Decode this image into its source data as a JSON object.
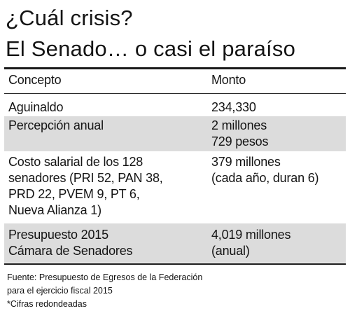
{
  "title": {
    "line1": "¿Cuál crisis?",
    "line2": "El Senado… o casi el paraíso"
  },
  "table": {
    "headers": [
      "Concepto",
      "Monto"
    ],
    "rows": [
      {
        "concept": [
          "Aguinaldo"
        ],
        "amount": [
          "234,330"
        ],
        "shaded": false
      },
      {
        "concept": [
          "Percepción anual"
        ],
        "amount": [
          "2 millones",
          "729 pesos"
        ],
        "shaded": true
      },
      {
        "concept": [
          "Costo salarial de los 128",
          "senadores (PRI 52, PAN 38,",
          "PRD 22, PVEM 9, PT 6,",
          "Nueva Alianza 1)"
        ],
        "amount": [
          "379 millones",
          "(cada año, duran 6)"
        ],
        "shaded": false
      },
      {
        "concept": [
          "Presupuesto 2015",
          "Cámara de Senadores"
        ],
        "amount": [
          "4,019 millones",
          "(anual)"
        ],
        "shaded": true
      }
    ]
  },
  "footnotes": {
    "source_line1": "Fuente: Presupuesto de Egresos de la Federación",
    "source_line2": "para el ejercicio fiscal 2015",
    "note": "*Cifras redondeadas"
  }
}
